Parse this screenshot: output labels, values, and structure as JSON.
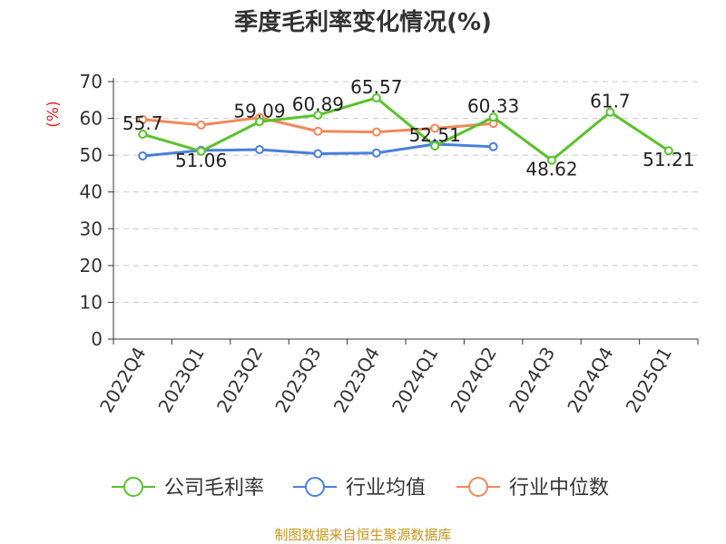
{
  "chart_data": {
    "type": "line",
    "title": "季度毛利率变化情况(%)",
    "ylabel": "(%)",
    "xlabel": "",
    "ylim": [
      0,
      70
    ],
    "yticks": [
      0,
      10,
      20,
      30,
      40,
      50,
      60,
      70
    ],
    "grid": true,
    "legend_position": "bottom",
    "categories": [
      "2022Q4",
      "2023Q1",
      "2023Q2",
      "2023Q3",
      "2023Q4",
      "2024Q1",
      "2024Q2",
      "2024Q3",
      "2024Q4",
      "2025Q1"
    ],
    "series": [
      {
        "name": "公司毛利率",
        "color": "#5ac12d",
        "values": [
          55.7,
          51.06,
          59.09,
          60.89,
          65.57,
          52.51,
          60.33,
          48.62,
          61.7,
          51.21
        ],
        "labels": [
          "55.7",
          "51.06",
          "59.09",
          "60.89",
          "65.57",
          "52.51",
          "60.33",
          "48.62",
          "61.7",
          "51.21"
        ]
      },
      {
        "name": "行业均值",
        "color": "#4a7fdc",
        "values": [
          49.8,
          51.3,
          51.5,
          50.4,
          50.6,
          53.0,
          52.3,
          null,
          null,
          null
        ]
      },
      {
        "name": "行业中位数",
        "color": "#f4875a",
        "values": [
          59.7,
          58.2,
          60.2,
          56.5,
          56.3,
          57.3,
          58.6,
          null,
          null,
          null
        ]
      }
    ],
    "source": "制图数据来自恒生聚源数据库"
  }
}
